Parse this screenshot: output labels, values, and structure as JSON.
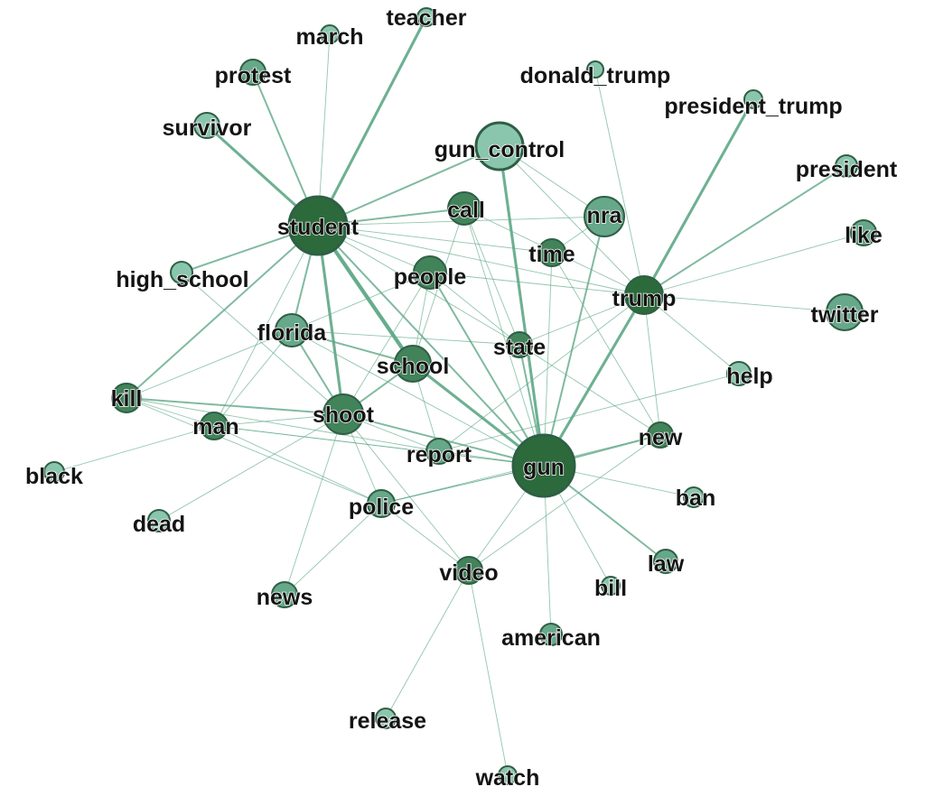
{
  "graph": {
    "colors": {
      "edge": "#5ea887",
      "stroke": "#2e5f45",
      "tier1": "#2c6a3c",
      "tier2": "#42835a",
      "tier3": "#66a889",
      "tier4": "#8ac6ad"
    },
    "nodes": [
      {
        "id": "student",
        "label": "student",
        "tier": "tier1"
      },
      {
        "id": "gun",
        "label": "gun",
        "tier": "tier1"
      },
      {
        "id": "trump",
        "label": "trump",
        "tier": "tier1"
      },
      {
        "id": "school",
        "label": "school",
        "tier": "tier2"
      },
      {
        "id": "shoot",
        "label": "shoot",
        "tier": "tier2"
      },
      {
        "id": "people",
        "label": "people",
        "tier": "tier2"
      },
      {
        "id": "call",
        "label": "call",
        "tier": "tier2"
      },
      {
        "id": "florida",
        "label": "florida",
        "tier": "tier3"
      },
      {
        "id": "kill",
        "label": "kill",
        "tier": "tier2"
      },
      {
        "id": "gun_control",
        "label": "gun_control",
        "tier": "tier4"
      },
      {
        "id": "nra",
        "label": "nra",
        "tier": "tier3"
      },
      {
        "id": "time",
        "label": "time",
        "tier": "tier2"
      },
      {
        "id": "state",
        "label": "state",
        "tier": "tier2"
      },
      {
        "id": "report",
        "label": "report",
        "tier": "tier3"
      },
      {
        "id": "police",
        "label": "police",
        "tier": "tier3"
      },
      {
        "id": "man",
        "label": "man",
        "tier": "tier2"
      },
      {
        "id": "video",
        "label": "video",
        "tier": "tier2"
      },
      {
        "id": "new",
        "label": "new",
        "tier": "tier2"
      },
      {
        "id": "help",
        "label": "help",
        "tier": "tier4"
      },
      {
        "id": "twitter",
        "label": "twitter",
        "tier": "tier3"
      },
      {
        "id": "like",
        "label": "like",
        "tier": "tier3"
      },
      {
        "id": "president",
        "label": "president",
        "tier": "tier4"
      },
      {
        "id": "president_trump",
        "label": "president_trump",
        "tier": "tier4"
      },
      {
        "id": "donald_trump",
        "label": "donald_trump",
        "tier": "tier4"
      },
      {
        "id": "teacher",
        "label": "teacher",
        "tier": "tier4"
      },
      {
        "id": "march",
        "label": "march",
        "tier": "tier4"
      },
      {
        "id": "protest",
        "label": "protest",
        "tier": "tier3"
      },
      {
        "id": "survivor",
        "label": "survivor",
        "tier": "tier4"
      },
      {
        "id": "high_school",
        "label": "high_school",
        "tier": "tier4"
      },
      {
        "id": "black",
        "label": "black",
        "tier": "tier4"
      },
      {
        "id": "dead",
        "label": "dead",
        "tier": "tier4"
      },
      {
        "id": "news",
        "label": "news",
        "tier": "tier3"
      },
      {
        "id": "ban",
        "label": "ban",
        "tier": "tier4"
      },
      {
        "id": "law",
        "label": "law",
        "tier": "tier3"
      },
      {
        "id": "bill",
        "label": "bill",
        "tier": "tier4"
      },
      {
        "id": "american",
        "label": "american",
        "tier": "tier3"
      },
      {
        "id": "release",
        "label": "release",
        "tier": "tier4"
      },
      {
        "id": "watch",
        "label": "watch",
        "tier": "tier4"
      }
    ],
    "edges": [
      {
        "source": "student",
        "target": "teacher",
        "weight": 3
      },
      {
        "source": "student",
        "target": "march",
        "weight": 1
      },
      {
        "source": "student",
        "target": "protest",
        "weight": 2
      },
      {
        "source": "student",
        "target": "survivor",
        "weight": 3
      },
      {
        "source": "student",
        "target": "gun_control",
        "weight": 2
      },
      {
        "source": "student",
        "target": "call",
        "weight": 2
      },
      {
        "source": "student",
        "target": "high_school",
        "weight": 2
      },
      {
        "source": "student",
        "target": "florida",
        "weight": 2
      },
      {
        "source": "student",
        "target": "kill",
        "weight": 2
      },
      {
        "source": "student",
        "target": "school",
        "weight": 4
      },
      {
        "source": "student",
        "target": "shoot",
        "weight": 3
      },
      {
        "source": "student",
        "target": "people",
        "weight": 1
      },
      {
        "source": "student",
        "target": "time",
        "weight": 1
      },
      {
        "source": "student",
        "target": "trump",
        "weight": 1
      },
      {
        "source": "student",
        "target": "state",
        "weight": 1
      },
      {
        "source": "student",
        "target": "gun",
        "weight": 2
      },
      {
        "source": "student",
        "target": "nra",
        "weight": 1
      },
      {
        "source": "student",
        "target": "man",
        "weight": 1
      },
      {
        "source": "gun",
        "target": "gun_control",
        "weight": 3
      },
      {
        "source": "gun",
        "target": "nra",
        "weight": 2
      },
      {
        "source": "gun",
        "target": "trump",
        "weight": 3
      },
      {
        "source": "gun",
        "target": "call",
        "weight": 1
      },
      {
        "source": "gun",
        "target": "people",
        "weight": 2
      },
      {
        "source": "gun",
        "target": "time",
        "weight": 1
      },
      {
        "source": "gun",
        "target": "state",
        "weight": 2
      },
      {
        "source": "gun",
        "target": "school",
        "weight": 3
      },
      {
        "source": "gun",
        "target": "shoot",
        "weight": 2
      },
      {
        "source": "gun",
        "target": "report",
        "weight": 1
      },
      {
        "source": "gun",
        "target": "police",
        "weight": 1
      },
      {
        "source": "gun",
        "target": "new",
        "weight": 2
      },
      {
        "source": "gun",
        "target": "ban",
        "weight": 1
      },
      {
        "source": "gun",
        "target": "law",
        "weight": 2
      },
      {
        "source": "gun",
        "target": "bill",
        "weight": 1
      },
      {
        "source": "gun",
        "target": "american",
        "weight": 1
      },
      {
        "source": "gun",
        "target": "video",
        "weight": 1
      },
      {
        "source": "gun",
        "target": "florida",
        "weight": 1
      },
      {
        "source": "gun",
        "target": "man",
        "weight": 1
      },
      {
        "source": "trump",
        "target": "president_trump",
        "weight": 3
      },
      {
        "source": "trump",
        "target": "donald_trump",
        "weight": 1
      },
      {
        "source": "trump",
        "target": "president",
        "weight": 2
      },
      {
        "source": "trump",
        "target": "like",
        "weight": 1
      },
      {
        "source": "trump",
        "target": "twitter",
        "weight": 1
      },
      {
        "source": "trump",
        "target": "help",
        "weight": 1
      },
      {
        "source": "trump",
        "target": "new",
        "weight": 1
      },
      {
        "source": "trump",
        "target": "people",
        "weight": 1
      },
      {
        "source": "trump",
        "target": "gun_control",
        "weight": 1
      },
      {
        "source": "trump",
        "target": "state",
        "weight": 1
      },
      {
        "source": "trump",
        "target": "report",
        "weight": 1
      },
      {
        "source": "trump",
        "target": "call",
        "weight": 1
      },
      {
        "source": "florida",
        "target": "school",
        "weight": 2
      },
      {
        "source": "florida",
        "target": "shoot",
        "weight": 2
      },
      {
        "source": "florida",
        "target": "kill",
        "weight": 1
      },
      {
        "source": "florida",
        "target": "man",
        "weight": 1
      },
      {
        "source": "florida",
        "target": "people",
        "weight": 1
      },
      {
        "source": "florida",
        "target": "state",
        "weight": 1
      },
      {
        "source": "kill",
        "target": "shoot",
        "weight": 2
      },
      {
        "source": "kill",
        "target": "man",
        "weight": 1
      },
      {
        "source": "kill",
        "target": "police",
        "weight": 1
      },
      {
        "source": "kill",
        "target": "report",
        "weight": 1
      },
      {
        "source": "shoot",
        "target": "school",
        "weight": 2
      },
      {
        "source": "shoot",
        "target": "man",
        "weight": 1
      },
      {
        "source": "shoot",
        "target": "police",
        "weight": 1
      },
      {
        "source": "shoot",
        "target": "news",
        "weight": 1
      },
      {
        "source": "shoot",
        "target": "dead",
        "weight": 1
      },
      {
        "source": "shoot",
        "target": "video",
        "weight": 1
      },
      {
        "source": "shoot",
        "target": "report",
        "weight": 1
      },
      {
        "source": "shoot",
        "target": "people",
        "weight": 1
      },
      {
        "source": "man",
        "target": "black",
        "weight": 1
      },
      {
        "source": "man",
        "target": "police",
        "weight": 1
      },
      {
        "source": "man",
        "target": "gun",
        "weight": 1
      },
      {
        "source": "police",
        "target": "news",
        "weight": 1
      },
      {
        "source": "police",
        "target": "gun",
        "weight": 1
      },
      {
        "source": "police",
        "target": "video",
        "weight": 1
      },
      {
        "source": "police",
        "target": "new",
        "weight": 1
      },
      {
        "source": "high_school",
        "target": "shoot",
        "weight": 1
      },
      {
        "source": "people",
        "target": "school",
        "weight": 1
      },
      {
        "source": "people",
        "target": "state",
        "weight": 1
      },
      {
        "source": "call",
        "target": "state",
        "weight": 1
      },
      {
        "source": "call",
        "target": "school",
        "weight": 1
      },
      {
        "source": "time",
        "target": "new",
        "weight": 1
      },
      {
        "source": "gun_control",
        "target": "nra",
        "weight": 1
      },
      {
        "source": "nra",
        "target": "time",
        "weight": 1
      },
      {
        "source": "state",
        "target": "new",
        "weight": 1
      },
      {
        "source": "school",
        "target": "report",
        "weight": 1
      },
      {
        "source": "video",
        "target": "release",
        "weight": 1
      },
      {
        "source": "video",
        "target": "watch",
        "weight": 1
      },
      {
        "source": "video",
        "target": "new",
        "weight": 1
      },
      {
        "source": "help",
        "target": "report",
        "weight": 1
      }
    ]
  }
}
